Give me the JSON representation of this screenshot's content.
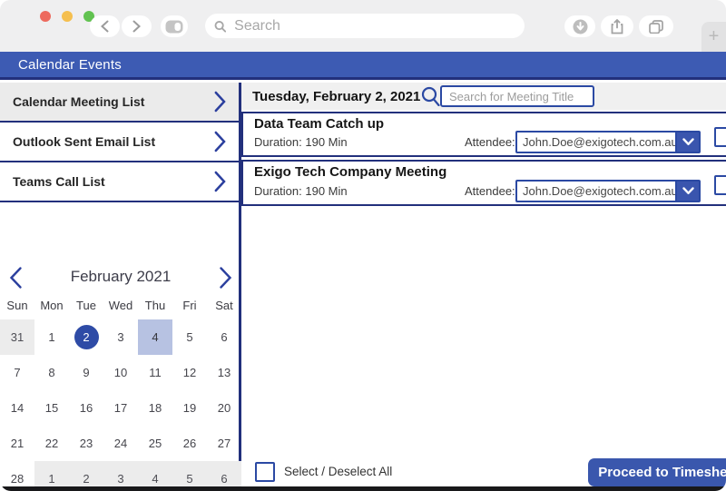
{
  "theme": {
    "accent": "#2b49a3",
    "header": "#3d5bb3",
    "navy": "#22307c",
    "button": "#3a57ad",
    "selday": "#2e4ba6",
    "hiday": "#b7c2e2",
    "chrome": "#efeff0",
    "panel": "#f0f0f0"
  },
  "browser": {
    "window_buttons": [
      {
        "name": "close",
        "color": "#ed6a5e"
      },
      {
        "name": "minimize",
        "color": "#f5bf4f"
      },
      {
        "name": "maximize",
        "color": "#61c250"
      }
    ],
    "search_placeholder": "Search",
    "new_tab_label": "+"
  },
  "app": {
    "title": "Calendar Events"
  },
  "sidebar": {
    "items": [
      {
        "label": "Calendar Meeting List",
        "selected": true
      },
      {
        "label": "Outlook Sent Email List",
        "selected": false
      },
      {
        "label": "Teams Call List",
        "selected": false
      }
    ]
  },
  "calendar": {
    "title": "February 2021",
    "weekdays": [
      "Sun",
      "Mon",
      "Tue",
      "Wed",
      "Thu",
      "Fri",
      "Sat"
    ],
    "weeks": [
      [
        {
          "day": "31",
          "outside": true
        },
        {
          "day": "1"
        },
        {
          "day": "2",
          "selected": true
        },
        {
          "day": "3"
        },
        {
          "day": "4",
          "highlighted": true
        },
        {
          "day": "5"
        },
        {
          "day": "6"
        }
      ],
      [
        {
          "day": "7"
        },
        {
          "day": "8"
        },
        {
          "day": "9"
        },
        {
          "day": "10"
        },
        {
          "day": "11"
        },
        {
          "day": "12"
        },
        {
          "day": "13"
        }
      ],
      [
        {
          "day": "14"
        },
        {
          "day": "15"
        },
        {
          "day": "16"
        },
        {
          "day": "17"
        },
        {
          "day": "18"
        },
        {
          "day": "19"
        },
        {
          "day": "20"
        }
      ],
      [
        {
          "day": "21"
        },
        {
          "day": "22"
        },
        {
          "day": "23"
        },
        {
          "day": "24"
        },
        {
          "day": "25"
        },
        {
          "day": "26"
        },
        {
          "day": "27"
        }
      ],
      [
        {
          "day": "28"
        },
        {
          "day": "1",
          "outside": true
        },
        {
          "day": "2",
          "outside": true
        },
        {
          "day": "3",
          "outside": true
        },
        {
          "day": "4",
          "outside": true
        },
        {
          "day": "5",
          "outside": true
        },
        {
          "day": "6",
          "outside": true
        }
      ]
    ]
  },
  "main": {
    "date_header": "Tuesday, February 2, 2021",
    "search_placeholder": "Search for Meeting Title",
    "attendee_label": "Attendee:",
    "meetings": [
      {
        "title": "Data Team Catch up",
        "duration": "Duration: 190 Min",
        "attendee": "John.Doe@exigotech.com.au",
        "checked": false
      },
      {
        "title": "Exigo Tech Company Meeting",
        "duration": "Duration: 190 Min",
        "attendee": "John.Doe@exigotech.com.au",
        "checked": false
      }
    ],
    "footer": {
      "select_all_label": "Select / Deselect All",
      "select_all_checked": false,
      "proceed_label": "Proceed to Timesheet"
    }
  }
}
